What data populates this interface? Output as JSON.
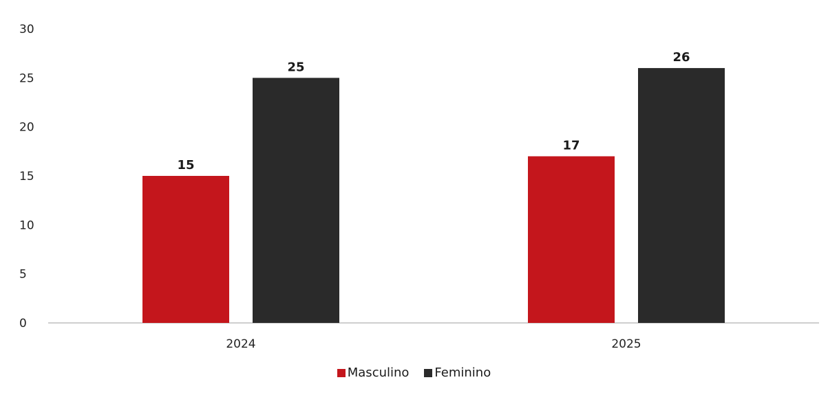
{
  "chart_data": {
    "type": "bar",
    "categories": [
      "2024",
      "2025"
    ],
    "series": [
      {
        "name": "Masculino",
        "values": [
          15,
          17
        ],
        "color": "#c4161c"
      },
      {
        "name": "Feminino",
        "values": [
          25,
          26
        ],
        "color": "#2a2a2a"
      }
    ],
    "ylim": [
      0,
      30
    ],
    "yticks": [
      0,
      5,
      10,
      15,
      20,
      25,
      30
    ],
    "grid": false,
    "legend": "bottom-center",
    "data_labels": true
  }
}
